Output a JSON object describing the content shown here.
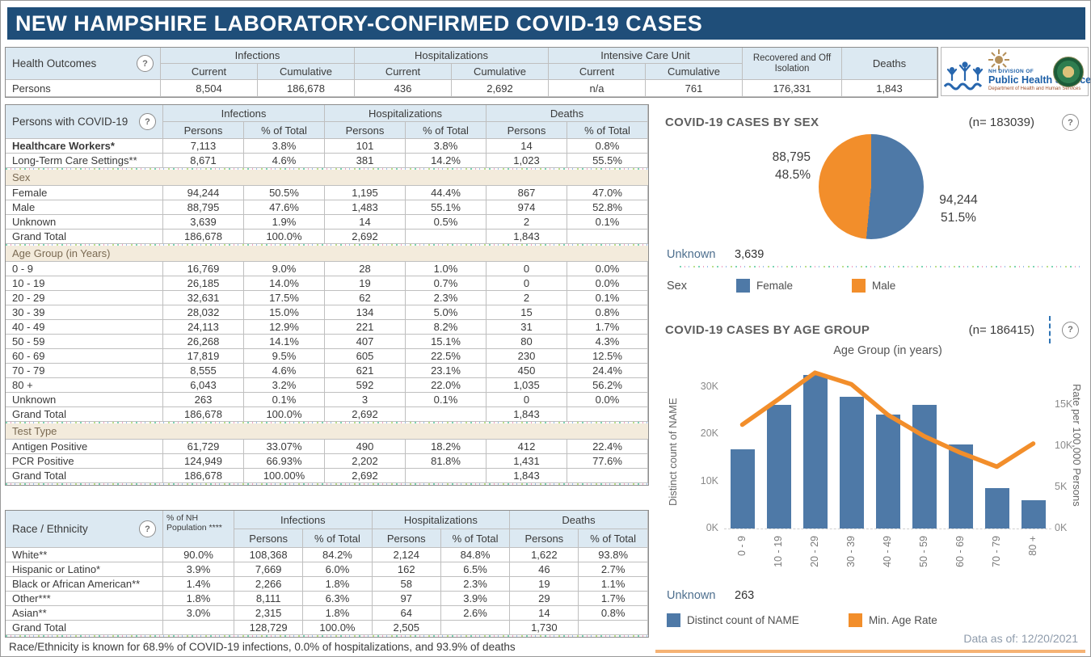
{
  "title": "NEW HAMPSHIRE LABORATORY-CONFIRMED COVID-19 CASES",
  "icons": {
    "help": "?"
  },
  "colors": {
    "header_bar": "#1F4E79",
    "header_fill": "#DCE9F2",
    "section_fill": "#F3EBDC",
    "accent_blue": "#4E79A7",
    "accent_orange": "#F28E2B"
  },
  "health_outcomes": {
    "label": "Health Outcomes",
    "col_groups": [
      "Infections",
      "Hospitalizations",
      "Intensive Care Unit"
    ],
    "sub_cols": [
      "Current",
      "Cumulative"
    ],
    "recovered_header": "Recovered and Off Isolation",
    "deaths_header": "Deaths",
    "row_label": "Persons",
    "values": [
      "8,504",
      "186,678",
      "436",
      "2,692",
      "n/a",
      "761",
      "176,331",
      "1,843"
    ]
  },
  "logo": {
    "org_small": "NH DIVISION OF",
    "org_main": "Public Health Services",
    "org_sub": "Department of Health and Human Services"
  },
  "persons_table": {
    "label": "Persons with COVID-19",
    "col_groups": [
      "Infections",
      "Hospitalizations",
      "Deaths"
    ],
    "sub_cols": [
      "Persons",
      "% of Total"
    ],
    "rows": [
      {
        "type": "data",
        "bold": true,
        "label": "Healthcare Workers*",
        "values": [
          "7,113",
          "3.8%",
          "101",
          "3.8%",
          "14",
          "0.8%"
        ]
      },
      {
        "type": "data",
        "label": "Long-Term Care Settings**",
        "values": [
          "8,671",
          "4.6%",
          "381",
          "14.2%",
          "1,023",
          "55.5%"
        ],
        "ants": true
      },
      {
        "type": "section",
        "label": "Sex"
      },
      {
        "type": "data",
        "label": "Female",
        "values": [
          "94,244",
          "50.5%",
          "1,195",
          "44.4%",
          "867",
          "47.0%"
        ]
      },
      {
        "type": "data",
        "label": "Male",
        "values": [
          "88,795",
          "47.6%",
          "1,483",
          "55.1%",
          "974",
          "52.8%"
        ]
      },
      {
        "type": "data",
        "label": "Unknown",
        "values": [
          "3,639",
          "1.9%",
          "14",
          "0.5%",
          "2",
          "0.1%"
        ]
      },
      {
        "type": "data",
        "label": "Grand Total",
        "values": [
          "186,678",
          "100.0%",
          "2,692",
          "",
          "1,843",
          ""
        ],
        "ants": true
      },
      {
        "type": "section",
        "label": "Age Group (in Years)"
      },
      {
        "type": "data",
        "label": "0 - 9",
        "values": [
          "16,769",
          "9.0%",
          "28",
          "1.0%",
          "0",
          "0.0%"
        ]
      },
      {
        "type": "data",
        "label": "10 - 19",
        "values": [
          "26,185",
          "14.0%",
          "19",
          "0.7%",
          "0",
          "0.0%"
        ]
      },
      {
        "type": "data",
        "label": "20 - 29",
        "values": [
          "32,631",
          "17.5%",
          "62",
          "2.3%",
          "2",
          "0.1%"
        ]
      },
      {
        "type": "data",
        "label": "30 - 39",
        "values": [
          "28,032",
          "15.0%",
          "134",
          "5.0%",
          "15",
          "0.8%"
        ]
      },
      {
        "type": "data",
        "label": "40 - 49",
        "values": [
          "24,113",
          "12.9%",
          "221",
          "8.2%",
          "31",
          "1.7%"
        ]
      },
      {
        "type": "data",
        "label": "50 - 59",
        "values": [
          "26,268",
          "14.1%",
          "407",
          "15.1%",
          "80",
          "4.3%"
        ]
      },
      {
        "type": "data",
        "label": "60 - 69",
        "values": [
          "17,819",
          "9.5%",
          "605",
          "22.5%",
          "230",
          "12.5%"
        ]
      },
      {
        "type": "data",
        "label": "70 - 79",
        "values": [
          "8,555",
          "4.6%",
          "621",
          "23.1%",
          "450",
          "24.4%"
        ]
      },
      {
        "type": "data",
        "label": "80 +",
        "values": [
          "6,043",
          "3.2%",
          "592",
          "22.0%",
          "1,035",
          "56.2%"
        ]
      },
      {
        "type": "data",
        "label": "Unknown",
        "values": [
          "263",
          "0.1%",
          "3",
          "0.1%",
          "0",
          "0.0%"
        ]
      },
      {
        "type": "data",
        "label": "Grand Total",
        "values": [
          "186,678",
          "100.0%",
          "2,692",
          "",
          "1,843",
          ""
        ],
        "ants": true
      },
      {
        "type": "section",
        "label": "Test Type"
      },
      {
        "type": "data",
        "label": "Antigen Positive",
        "values": [
          "61,729",
          "33.07%",
          "490",
          "18.2%",
          "412",
          "22.4%"
        ]
      },
      {
        "type": "data",
        "label": "PCR Positive",
        "values": [
          "124,949",
          "66.93%",
          "2,202",
          "81.8%",
          "1,431",
          "77.6%"
        ]
      },
      {
        "type": "data",
        "label": "Grand Total",
        "values": [
          "186,678",
          "100.00%",
          "2,692",
          "",
          "1,843",
          ""
        ],
        "ants": true
      }
    ]
  },
  "race_table": {
    "label": "Race / Ethnicity",
    "pop_header": "% of NH Population ****",
    "col_groups": [
      "Infections",
      "Hospitalizations",
      "Deaths"
    ],
    "sub_cols": [
      "Persons",
      "% of Total"
    ],
    "rows": [
      {
        "label": "White**",
        "values": [
          "90.0%",
          "108,368",
          "84.2%",
          "2,124",
          "84.8%",
          "1,622",
          "93.8%"
        ]
      },
      {
        "label": "Hispanic or Latino*",
        "values": [
          "3.9%",
          "7,669",
          "6.0%",
          "162",
          "6.5%",
          "46",
          "2.7%"
        ]
      },
      {
        "label": "Black or African American**",
        "values": [
          "1.4%",
          "2,266",
          "1.8%",
          "58",
          "2.3%",
          "19",
          "1.1%"
        ]
      },
      {
        "label": "Other***",
        "values": [
          "1.8%",
          "8,111",
          "6.3%",
          "97",
          "3.9%",
          "29",
          "1.7%"
        ]
      },
      {
        "label": "Asian**",
        "values": [
          "3.0%",
          "2,315",
          "1.8%",
          "64",
          "2.6%",
          "14",
          "0.8%"
        ]
      },
      {
        "label": "Grand Total",
        "values": [
          "",
          "128,729",
          "100.0%",
          "2,505",
          "",
          "1,730",
          ""
        ],
        "ants": true
      }
    ],
    "footnote": "Race/Ethnicity is known for 68.9% of COVID-19 infections, 0.0% of hospitalizations, and 93.9% of deaths"
  },
  "sex_chart": {
    "title": "COVID-19 CASES BY SEX",
    "n_label": "(n= 183039)",
    "legend_title": "Sex",
    "unknown_label": "Unknown",
    "unknown_value": "3,639"
  },
  "age_chart": {
    "title": "COVID-19 CASES BY AGE GROUP",
    "n_label": "(n= 186415)",
    "unknown_label": "Unknown",
    "unknown_value": "263"
  },
  "data_as_of": {
    "label": "Data as of:",
    "date": "12/20/2021"
  },
  "chart_data": [
    {
      "type": "pie",
      "title": "COVID-19 CASES BY SEX",
      "n": 183039,
      "slices": [
        {
          "label": "Female",
          "value": 94244,
          "pct": 51.5,
          "color": "#4E79A7",
          "display": "94,244",
          "pct_display": "51.5%"
        },
        {
          "label": "Male",
          "value": 88795,
          "pct": 48.5,
          "color": "#F28E2B",
          "display": "88,795",
          "pct_display": "48.5%"
        }
      ],
      "unknown": 3639,
      "legend_position": "bottom"
    },
    {
      "type": "bar",
      "title": "COVID-19 CASES BY AGE GROUP",
      "subtitle": "Age Group (in years)",
      "n": 186415,
      "categories": [
        "0 - 9",
        "10 - 19",
        "20 - 29",
        "30 - 39",
        "40 - 49",
        "50 - 59",
        "60 - 69",
        "70 - 79",
        "80 +"
      ],
      "series": [
        {
          "name": "Distinct count of NAME",
          "type": "bar",
          "axis": "left",
          "color": "#4E79A7",
          "values": [
            16769,
            26185,
            32631,
            28032,
            24113,
            26268,
            17819,
            8555,
            6043
          ]
        },
        {
          "name": "Min. Age Rate",
          "type": "line",
          "axis": "right",
          "color": "#F28E2B",
          "values": [
            12600,
            15700,
            18900,
            17500,
            13800,
            11200,
            9200,
            7500,
            10300
          ]
        }
      ],
      "left_axis": {
        "label": "Distinct count of NAME",
        "ticks": [
          "0K",
          "10K",
          "20K",
          "30K"
        ],
        "tick_values": [
          0,
          10000,
          20000,
          30000
        ],
        "max": 35000
      },
      "right_axis": {
        "label": "Rate per 100,000 Persons",
        "ticks": [
          "0K",
          "5K",
          "10K",
          "15K"
        ],
        "tick_values": [
          0,
          5000,
          10000,
          15000
        ],
        "max": 20000
      },
      "unknown": 263,
      "grid": false
    }
  ]
}
